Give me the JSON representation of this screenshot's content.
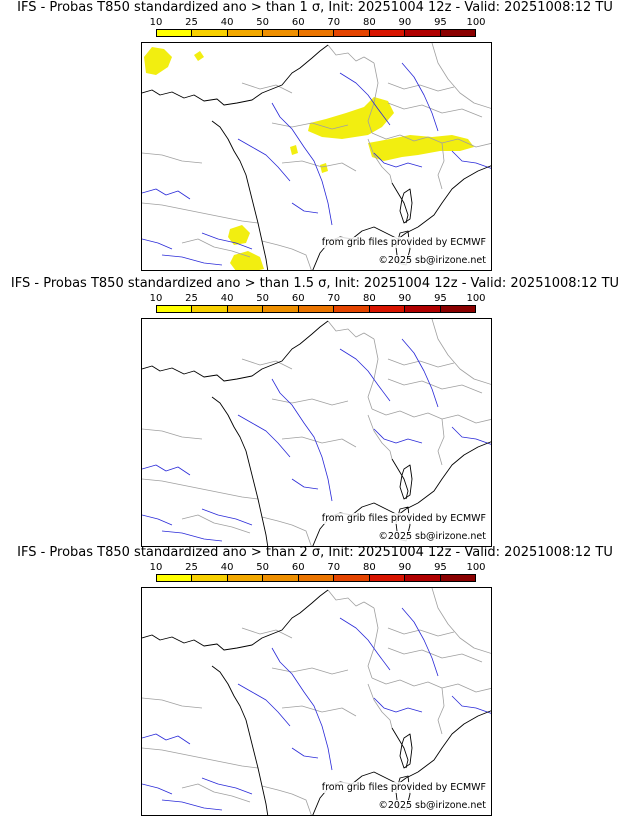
{
  "panels": [
    {
      "title": "IFS - Probas T850  standardized ano > than 1 σ, Init: 20251004 12z - Valid: 20251008:12 TU",
      "credit": "from grib files provided by ECMWF",
      "copyright": "©2025 sb@irizone.net",
      "has_anomaly_areas": true
    },
    {
      "title": "IFS - Probas T850  standardized ano > than 1.5 σ, Init: 20251004 12z - Valid: 20251008:12 TU",
      "credit": "from grib files provided by ECMWF",
      "copyright": "©2025 sb@irizone.net",
      "has_anomaly_areas": false
    },
    {
      "title": "IFS - Probas T850  standardized ano > than 2 σ, Init: 20251004 12z - Valid: 20251008:12 TU",
      "credit": "from grib files provided by ECMWF",
      "copyright": "©2025 sb@irizone.net",
      "has_anomaly_areas": false
    }
  ],
  "legend": {
    "ticks": [
      "10",
      "25",
      "40",
      "50",
      "60",
      "70",
      "80",
      "90",
      "95",
      "100"
    ],
    "colors": [
      "#ffff00",
      "#f7d000",
      "#f2a800",
      "#ee8f00",
      "#ea7400",
      "#e44400",
      "#d81400",
      "#b00000",
      "#8a0000",
      "#5a0000"
    ]
  },
  "colors": {
    "coast": "#000000",
    "borders": "#a0a0a0",
    "rivers": "#2a2ad8",
    "anomaly_fill": "#f2ee10"
  }
}
